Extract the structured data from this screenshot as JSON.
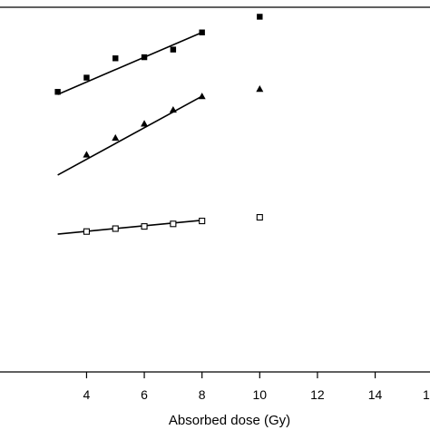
{
  "chart_data": {
    "type": "scatter",
    "xlabel": "Absorbed dose (Gy)",
    "ylabel": "",
    "xlim": [
      1.0,
      15.9
    ],
    "ylim": [
      0,
      1
    ],
    "x_ticks": [
      4,
      6,
      8,
      10,
      12,
      14
    ],
    "x_tick_labels": [
      "4",
      "6",
      "8",
      "10",
      "12",
      "14"
    ],
    "x_tick_label_partial": "1",
    "grid": false,
    "series": [
      {
        "marker": "filled-square",
        "points": [
          [
            3,
            0.768
          ],
          [
            4,
            0.807
          ],
          [
            5,
            0.86
          ],
          [
            6,
            0.863
          ],
          [
            7,
            0.884
          ],
          [
            8,
            0.931
          ],
          [
            10,
            0.974
          ]
        ],
        "fit": [
          [
            3,
            0.761
          ],
          [
            8,
            0.931
          ]
        ]
      },
      {
        "marker": "filled-triangle",
        "points": [
          [
            4,
            0.596
          ],
          [
            5,
            0.642
          ],
          [
            6,
            0.681
          ],
          [
            7,
            0.719
          ],
          [
            8,
            0.756
          ],
          [
            10,
            0.776
          ]
        ],
        "fit": [
          [
            3,
            0.54
          ],
          [
            8,
            0.756
          ]
        ]
      },
      {
        "marker": "open-square",
        "points": [
          [
            4,
            0.385
          ],
          [
            5,
            0.393
          ],
          [
            6,
            0.399
          ],
          [
            7,
            0.406
          ],
          [
            8,
            0.414
          ],
          [
            10,
            0.424
          ]
        ],
        "fit": [
          [
            3,
            0.378
          ],
          [
            8,
            0.416
          ]
        ]
      }
    ]
  }
}
